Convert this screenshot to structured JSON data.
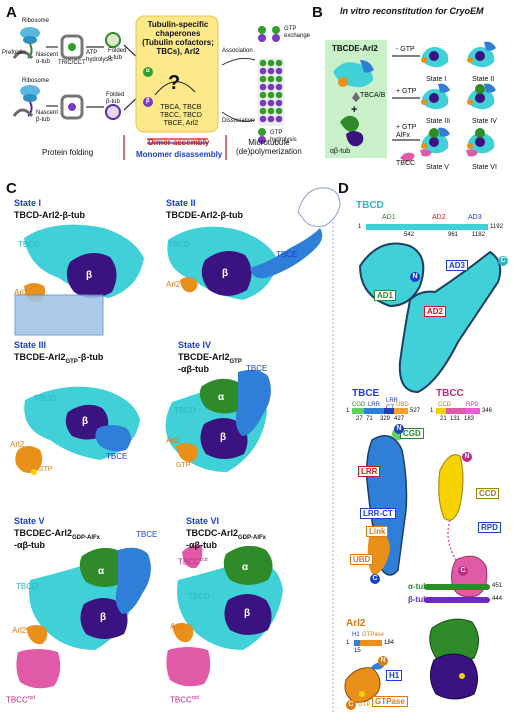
{
  "panels": {
    "A": "A",
    "B": "B",
    "C": "C",
    "D": "D"
  },
  "panel_a": {
    "ribosome_top": "Ribosome",
    "nascent_alpha": "Nascent\nα-tub",
    "prefoldin": "Prefoldin",
    "tric": "TRiC/CCT",
    "atp": "ATP\nhydrolysis",
    "folded_alpha": "Folded\nα-tub",
    "ribosome_bottom": "Ribosome",
    "nascent_beta": "Nascent\nβ-tub",
    "folded_beta": "Folded\nβ-tub",
    "box_title": "Tubulin-specific\nchaperones\n(Tubulin cofactors;\nTBCs), Arl2",
    "question": "?",
    "box_list": "TBCA, TBCB\nTBCC, TBCD\nTBCE, Arl2",
    "dimer_assembly": "Dimer assembly",
    "monomer_disassembly": "Monomer disassembly",
    "protein_folding": "Protein folding",
    "microtubule": "Microtubule\n(de)polymerization",
    "association": "Association",
    "dissociation": "Dissociation",
    "gtp_exchange": "GTP\nexchange",
    "gtp_hydrolysis": "GTP\nhydrolysis",
    "alpha": "α",
    "beta": "β"
  },
  "panel_b": {
    "title": "In vitro reconstitution for CryoEM",
    "tbcde_arl2": "TBCDE-Arl2",
    "tbca_b": "TBCA/B",
    "plus": "+",
    "ab_tub": "αβ-tub",
    "minus_gtp": "- GTP",
    "plus_gtp": "+ GTP",
    "plus_gtp_alfx": "+ GTP\nAlFx",
    "tbcc": "TBCC",
    "states": [
      "State I",
      "State II",
      "State III",
      "State IV",
      "State V",
      "State VI"
    ]
  },
  "panel_c": {
    "s1_title": "State I",
    "s1_sub": "TBCD-Arl2-β-tub",
    "s2_title": "State II",
    "s2_sub": "TBCDE-Arl2-β-tub",
    "s3_title": "State III",
    "s3_sub": "TBCDE-Arl2",
    "s3_sub_gtp": "GTP",
    "s3_sub_end": "-β-tub",
    "s4_title": "State IV",
    "s4_sub": "TBCDE-Arl2",
    "s4_sub_gtp": "GTP",
    "s4_sub2": "-αβ-tub",
    "s5_title": "State V",
    "s5_sub": "TBCDEC-Arl2",
    "s5_sub_gtp": "GDP-AlFx",
    "s5_sub2": "-αβ-tub",
    "s6_title": "State VI",
    "s6_sub": "TBCDC-Arl2",
    "s6_sub_gtp": "GDP-AlFx",
    "s6_sub2": "-αβ-tub",
    "tbcd": "TBCD",
    "tbce": "TBCE",
    "arl2": "Arl2",
    "gtp": "GTP",
    "alpha": "α",
    "beta": "β",
    "tbcc_ccd": "TBCC",
    "ccd_sup": "ccd",
    "rpd_sup": "rpd"
  },
  "panel_d": {
    "tbcd_title": "TBCD",
    "ad1": "AD1",
    "ad2": "AD2",
    "ad3": "AD3",
    "tbcd_start": "1",
    "tbcd_ticks": [
      "542",
      "961",
      "1182"
    ],
    "tbcd_end": "1192",
    "n": "N",
    "c": "C",
    "tbce_title": "TBCE",
    "tbce_domains": [
      "CGD",
      "LRR",
      "LRR CT",
      "UBD"
    ],
    "tbce_ticks": [
      "1",
      "27",
      "71",
      "329",
      "427",
      "527"
    ],
    "tbcc_title": "TBCC",
    "tbcc_domains": [
      "CCD",
      "RPD"
    ],
    "tbcc_ticks": [
      "1",
      "21",
      "131",
      "183",
      "346"
    ],
    "cgd": "CGD",
    "lrr": "LRR",
    "lrr_ct": "LRR-CT",
    "link": "Link",
    "ubd": "UBD",
    "ccd": "CCD",
    "rpd": "RPD",
    "alpha_tub": "α-tub",
    "alpha_end": "451",
    "beta_tub": "β-tub",
    "beta_end": "444",
    "arl2_title": "Arl2",
    "arl2_h1": "H1",
    "arl2_gtpase": "GTPase",
    "arl2_ticks": [
      "1",
      "15",
      "184"
    ],
    "h1": "H1",
    "gtpase": "GTPase",
    "gtp": "GTP"
  },
  "colors": {
    "tbcd": "#3fd0d8",
    "tbce": "#2f7fd9",
    "arl2": "#e8901a",
    "alpha": "#2f8a2a",
    "beta": "#3b1380",
    "tbcc": "#e05aa8",
    "yellow_box": "#fde98a"
  }
}
